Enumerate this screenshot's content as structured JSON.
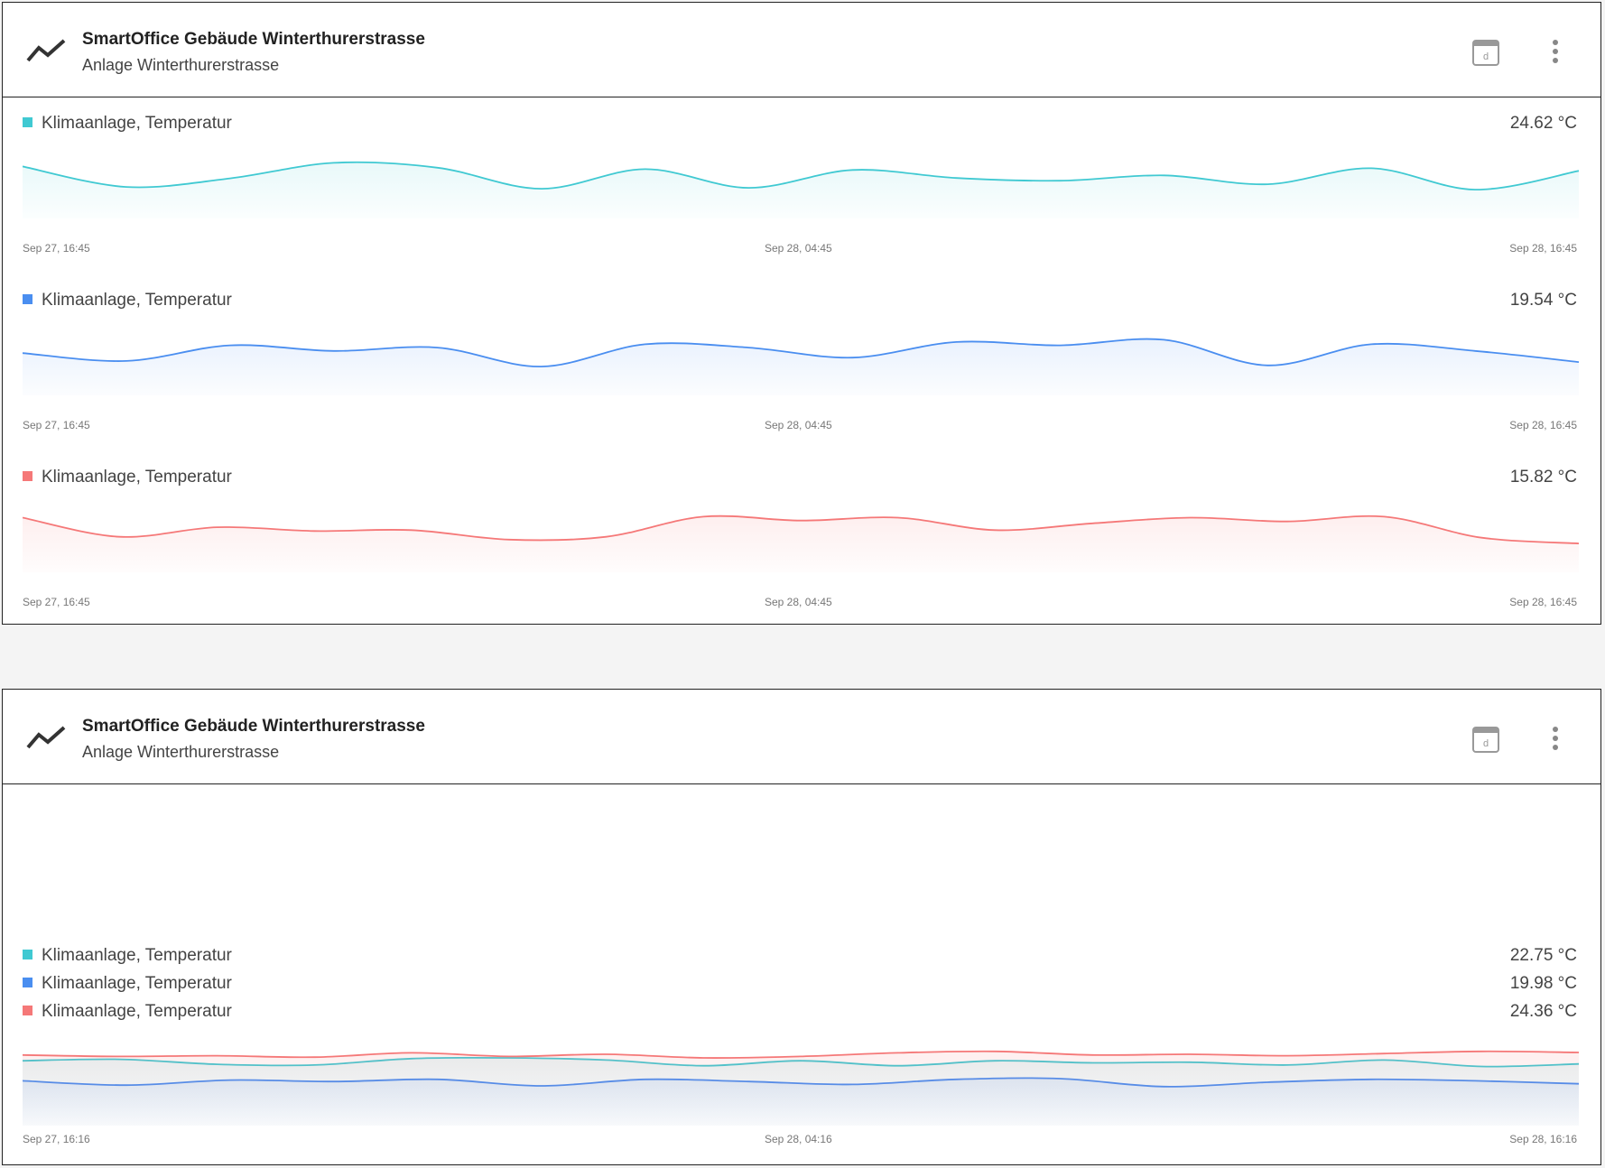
{
  "widgets": [
    {
      "title": "SmartOffice Gebäude Winterthurerstrasse",
      "subtitle": "Anlage Winterthurerstrasse",
      "date_button": "d",
      "charts": [
        {
          "type": "line",
          "x_labels": [
            "Sep 27, 16:45",
            "Sep 28, 04:45",
            "Sep 28, 16:45"
          ],
          "series": [
            {
              "name": "Klimaanlage, Temperatur",
              "color": "#40c9d2",
              "current": "24.62 °C",
              "values": [
                24.87,
                23.72,
                24.2,
                25.07,
                24.8,
                23.62,
                24.72,
                23.67,
                24.67,
                24.22,
                24.07,
                24.37,
                23.87,
                24.77,
                23.57,
                24.62
              ]
            }
          ]
        },
        {
          "type": "line",
          "x_labels": [
            "Sep 27, 16:45",
            "Sep 28, 04:45",
            "Sep 28, 16:45"
          ],
          "series": [
            {
              "name": "Klimaanlage, Temperatur",
              "color": "#4a8ef0",
              "current": "19.54 °C",
              "values": [
                19.94,
                19.59,
                20.29,
                20.04,
                20.19,
                19.34,
                20.34,
                20.19,
                19.74,
                20.44,
                20.29,
                20.54,
                19.39,
                20.34,
                20.04,
                19.54
              ]
            }
          ]
        },
        {
          "type": "line",
          "x_labels": [
            "Sep 27, 16:45",
            "Sep 28, 04:45",
            "Sep 28, 16:45"
          ],
          "series": [
            {
              "name": "Klimaanlage, Temperatur",
              "color": "#f57878",
              "current": "15.82 °C",
              "values": [
                17.17,
                16.17,
                16.67,
                16.47,
                16.52,
                16.02,
                16.17,
                17.22,
                17.02,
                17.17,
                16.52,
                16.87,
                17.17,
                16.97,
                17.22,
                16.12,
                15.82
              ]
            }
          ]
        }
      ]
    },
    {
      "title": "SmartOffice Gebäude Winterthurerstrasse",
      "subtitle": "Anlage Winterthurerstrasse",
      "date_button": "d",
      "charts": [
        {
          "type": "line",
          "x_labels": [
            "Sep 27, 16:16",
            "Sep 28, 04:16",
            "Sep 28, 16:16"
          ],
          "series": [
            {
              "name": "Klimaanlage, Temperatur",
              "color": "#40c9d2",
              "current": "22.75 °C",
              "values": [
                23.2,
                23.4,
                22.7,
                22.6,
                23.5,
                23.6,
                23.3,
                22.5,
                23.2,
                22.5,
                23.2,
                22.9,
                23.0,
                22.6,
                23.3,
                22.4,
                22.75
              ]
            },
            {
              "name": "Klimaanlage, Temperatur",
              "color": "#4a8ef0",
              "current": "19.98 °C",
              "values": [
                20.4,
                19.8,
                20.5,
                20.3,
                20.6,
                19.7,
                20.6,
                20.3,
                19.9,
                20.6,
                20.7,
                19.6,
                20.2,
                20.6,
                20.4,
                19.98
              ]
            },
            {
              "name": "Klimaanlage, Temperatur",
              "color": "#f57878",
              "current": "24.36 °C",
              "values": [
                24.0,
                23.8,
                23.9,
                23.7,
                24.3,
                23.8,
                24.1,
                23.6,
                23.8,
                24.3,
                24.5,
                24.0,
                24.1,
                23.9,
                24.2,
                24.5,
                24.36
              ]
            }
          ]
        }
      ]
    }
  ]
}
